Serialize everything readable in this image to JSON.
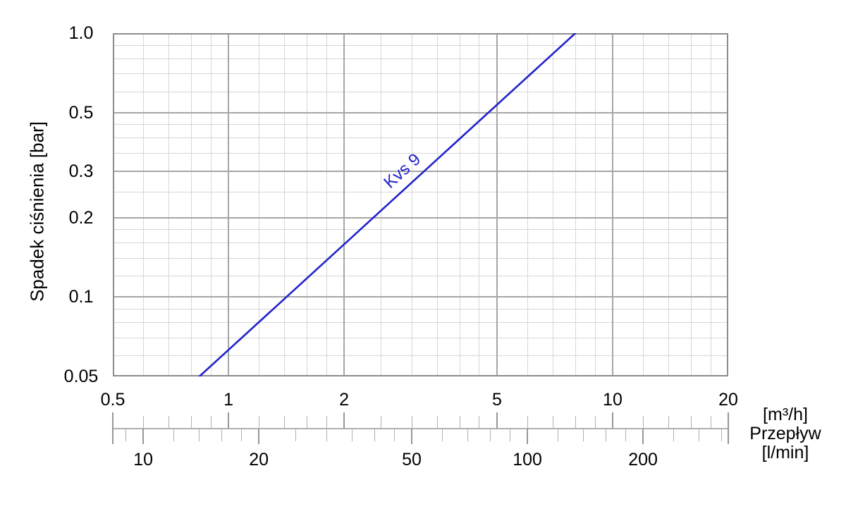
{
  "chart_data": {
    "type": "line",
    "title": "",
    "x_axis": {
      "unit": "[m³/h]",
      "scale": "log",
      "min": 0.5,
      "max": 20,
      "tick_values": [
        0.5,
        1,
        2,
        5,
        10,
        20
      ],
      "tick_labels": [
        "0.5",
        "1",
        "2",
        "5",
        "10",
        "20"
      ],
      "major_gridlines": [
        1,
        2,
        5,
        10
      ],
      "minor_gridlines": [
        0.6,
        0.7,
        0.8,
        0.9,
        1.2,
        1.4,
        1.6,
        1.8,
        2.5,
        3,
        3.5,
        4,
        4.5,
        6,
        7,
        8,
        9,
        12,
        14,
        16,
        18
      ]
    },
    "y_axis": {
      "label": "Spadek ciśnienia [bar]",
      "scale": "log",
      "min": 0.05,
      "max": 1.0,
      "tick_values": [
        1.0,
        0.5,
        0.3,
        0.2,
        0.1,
        0.05
      ],
      "tick_labels": [
        "1.0",
        "0.5",
        "0.3",
        "0.2",
        "0.1",
        "0.05"
      ],
      "major_gridlines": [
        0.5,
        0.3,
        0.2,
        0.1
      ],
      "minor_gridlines": [
        0.9,
        0.8,
        0.7,
        0.6,
        0.45,
        0.4,
        0.35,
        0.25,
        0.18,
        0.16,
        0.14,
        0.12,
        0.09,
        0.08,
        0.07,
        0.06
      ]
    },
    "flow_axis": {
      "name": "Przepływ",
      "upper_unit": "[m³/h]",
      "lower_unit": "[l/min]",
      "lmin_per_m3h": 16.6667,
      "upper_tick_values": [
        0.5,
        0.6,
        0.7,
        0.8,
        0.9,
        1,
        1.2,
        1.4,
        1.6,
        1.8,
        2,
        2.5,
        3,
        3.5,
        4,
        4.5,
        5,
        6,
        7,
        8,
        9,
        10,
        12,
        14,
        16,
        18,
        20
      ],
      "upper_major_ticks": [
        0.5,
        1,
        2,
        5,
        10,
        20
      ],
      "lower_tick_values": [
        9,
        10,
        12,
        14,
        16,
        18,
        20,
        25,
        30,
        35,
        40,
        45,
        50,
        60,
        70,
        80,
        90,
        100,
        120,
        140,
        160,
        180,
        200,
        240,
        280,
        320
      ],
      "lower_major_ticks": [
        10,
        20,
        50,
        100,
        200
      ],
      "lower_tick_labels": [
        "10",
        "20",
        "50",
        "100",
        "200"
      ]
    },
    "unit_block": [
      "[m³/h]",
      "Przepływ",
      "[l/min]"
    ],
    "series": [
      {
        "name": "Kvs 9",
        "color": "#2222cc",
        "points": [
          [
            0.84,
            0.05
          ],
          [
            8.0,
            1.0
          ]
        ],
        "points_units": "[m³/h, bar]"
      }
    ]
  },
  "colors": {
    "line": "#2222cc",
    "text": "#000000",
    "grid_minor": "#d6d6d6",
    "grid_major": "#a6a6a6",
    "border": "#8c8c8c",
    "ruler": "#b0b0b0",
    "ruler_major": "#979797"
  }
}
